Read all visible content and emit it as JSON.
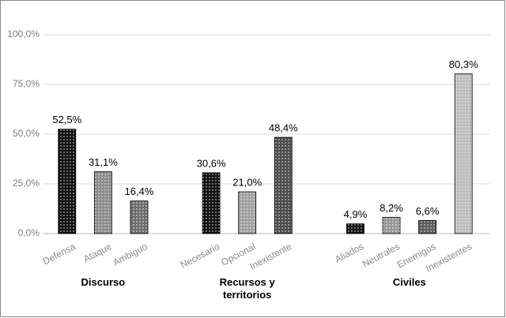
{
  "chart_data": {
    "type": "bar",
    "categories": [
      "Defensa",
      "Ataque",
      "Ambiguo",
      null,
      "Necesario",
      "Opcional",
      "Inexistente",
      null,
      "Aliados",
      "Neutrales",
      "Enemigos",
      "Inexistentes"
    ],
    "values": [
      52.5,
      31.1,
      16.4,
      null,
      30.6,
      21.0,
      48.4,
      null,
      4.9,
      8.2,
      6.6,
      80.3
    ],
    "value_labels": [
      "52,5%",
      "31,1%",
      "16,4%",
      null,
      "30,6%",
      "21,0%",
      "48,4%",
      null,
      "4,9%",
      "8,2%",
      "6,6%",
      "80,3%"
    ],
    "colors": [
      "#111111",
      "#8c8c8c",
      "#6e6e6e",
      null,
      "#111111",
      "#a0a0a0",
      "#4d4d4d",
      null,
      "#111111",
      "#999999",
      "#5c5c5c",
      "#bdbdbd"
    ],
    "groups": [
      "Discurso",
      "Recursos y territorios",
      "Civiles"
    ],
    "ylim": [
      0,
      100
    ],
    "yticks": [
      {
        "value": 0,
        "label": "0,0%"
      },
      {
        "value": 25,
        "label": "25,0%"
      },
      {
        "value": 50,
        "label": "50,0%"
      },
      {
        "value": 75,
        "label": "75,0%"
      },
      {
        "value": 100,
        "label": "100,0%"
      }
    ],
    "grid": true
  }
}
